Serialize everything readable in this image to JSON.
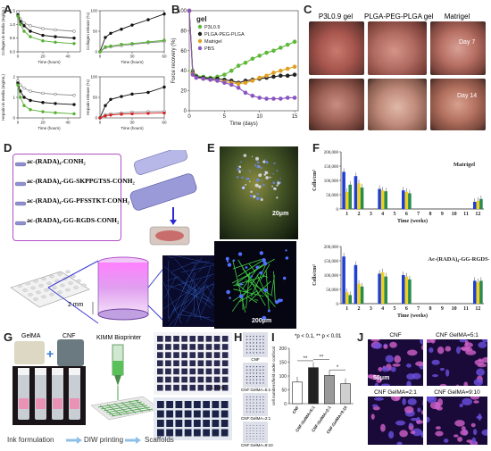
{
  "panels": {
    "A": {
      "label": "A",
      "sub1_ylabel": "Collagen in media (mg/mL)",
      "sub1_xlabel": "Time (hours)",
      "sub2_ylabel": "Collagen release (%)",
      "sub2_xlabel": "Time (hours)",
      "sub3_ylabel": "Heparin in media (mg/mL)",
      "sub3_xlabel": "Time (hours)",
      "sub4_ylabel": "Heparin release (%)",
      "sub4_xlabel": "Time (hours)"
    },
    "B": {
      "label": "B",
      "gel_label": "gel",
      "ylabel": "Force recovery (%)",
      "xlabel": "Time (days)"
    },
    "C": {
      "label": "C",
      "col1": "P3L0.9 gel",
      "col2": "PLGA-PEG-PLGA gel",
      "col3": "Matrigel",
      "row1": "Day 7",
      "row2": "Day 14"
    },
    "D": {
      "label": "D",
      "seq1": "ac-(RADA)₄-CONH₂",
      "seq2": "ac-(RADA)₄-GG-SKPPGTSS-CONH₂",
      "seq3": "ac-(RADA)₄-GG-PFSSTKT-CONH₂",
      "seq4": "ac-(RADA)₄-GG-RGDS-CONH₂",
      "scale": "2 mm"
    },
    "E": {
      "label": "E",
      "scale1": "20μm",
      "scale2": "200μm"
    },
    "F": {
      "label": "F",
      "title1": "Matrigel",
      "title2": "Ac-(RADA)₄-GG-RGDS-NH₂",
      "ylabel": "Cells/cm²",
      "xlabel": "Time (weeks)"
    },
    "G": {
      "label": "G",
      "gelma": "GelMA",
      "cnf": "CNF",
      "bioprinter": "KIMM Bioprinter",
      "scale": "1 mm",
      "step1": "Ink formulation",
      "step2": "DIW printing",
      "step3": "Scaffolds"
    },
    "H": {
      "label": "H",
      "cap1": "CNF",
      "cap2": "CNF:GelMA=5:1",
      "cap3": "CNF:GelMA=2:1",
      "cap4": "CNF:GelMA=9:10"
    },
    "I": {
      "label": "I",
      "note": "*p < 0.1, ** p < 0.01",
      "ylabel": "cell numbers/field under confocal",
      "sig1": "**",
      "sig2": "**",
      "sig3": "*"
    },
    "J": {
      "label": "J",
      "cap1": "CNF",
      "cap2": "CNF GelMA=5:1",
      "cap3": "CNF GelMA=2:1",
      "cap4": "CNF GelMA=9:10",
      "scale": "50μm"
    }
  },
  "chart_data": [
    {
      "id": "A1",
      "type": "line",
      "title": "",
      "xlabel": "Time (hours)",
      "ylabel": "Collagen in media (mg/mL)",
      "xlim": [
        0,
        50
      ],
      "ylim": [
        0,
        1.5
      ],
      "xticks": [
        "0",
        "20",
        "40"
      ],
      "yticks": [
        "0.0",
        "0.5",
        "1.0",
        "1.5"
      ],
      "x": [
        0,
        2,
        5,
        10,
        20,
        30,
        45
      ],
      "series": [
        {
          "values": [
            1.45,
            1.2,
            1.05,
            0.95,
            0.85,
            0.8,
            0.75
          ],
          "color": "#888888"
        },
        {
          "values": [
            1.35,
            1.1,
            0.95,
            0.75,
            0.6,
            0.55,
            0.5
          ],
          "color": "#111111"
        },
        {
          "values": [
            1.3,
            1.0,
            0.75,
            0.55,
            0.4,
            0.35,
            0.3
          ],
          "color": "#55b030"
        }
      ]
    },
    {
      "id": "A2",
      "type": "line",
      "title": "",
      "xlabel": "Time (hours)",
      "ylabel": "Collagen release (%)",
      "xlim": [
        0,
        60
      ],
      "ylim": [
        0,
        100
      ],
      "xticks": [
        "0",
        "30",
        "60"
      ],
      "yticks": [
        "0",
        "50",
        "100"
      ],
      "x": [
        0,
        5,
        10,
        20,
        30,
        45,
        60
      ],
      "series": [
        {
          "values": [
            0,
            35,
            45,
            55,
            65,
            78,
            92
          ],
          "color": "#111111"
        },
        {
          "values": [
            0,
            10,
            12,
            15,
            18,
            22,
            25
          ],
          "color": "#888888"
        },
        {
          "values": [
            0,
            12,
            14,
            18,
            20,
            24,
            28
          ],
          "color": "#55b030"
        }
      ]
    },
    {
      "id": "A3",
      "type": "line",
      "title": "",
      "xlabel": "Time (hours)",
      "ylabel": "Heparin in media (mg/mL)",
      "xlim": [
        0,
        50
      ],
      "ylim": [
        0,
        2.0
      ],
      "xticks": [
        "0",
        "20",
        "40"
      ],
      "yticks": [
        "0",
        "1",
        "2"
      ],
      "x": [
        0,
        2,
        5,
        10,
        20,
        30,
        45
      ],
      "series": [
        {
          "values": [
            1.8,
            1.6,
            1.45,
            1.3,
            1.2,
            1.15,
            1.1
          ],
          "color": "#888888"
        },
        {
          "values": [
            1.7,
            1.3,
            1.0,
            0.85,
            0.75,
            0.7,
            0.65
          ],
          "color": "#111111"
        },
        {
          "values": [
            1.6,
            1.0,
            0.6,
            0.4,
            0.3,
            0.25,
            0.2
          ],
          "color": "#55b030"
        }
      ]
    },
    {
      "id": "A4",
      "type": "line",
      "title": "",
      "xlabel": "Time (hours)",
      "ylabel": "Heparin release (%)",
      "xlim": [
        0,
        60
      ],
      "ylim": [
        0,
        100
      ],
      "xticks": [
        "0",
        "30",
        "60"
      ],
      "yticks": [
        "0",
        "50",
        "100"
      ],
      "x": [
        0,
        5,
        10,
        20,
        30,
        45,
        60
      ],
      "series": [
        {
          "values": [
            0,
            30,
            45,
            52,
            58,
            62,
            75
          ],
          "color": "#111111"
        },
        {
          "values": [
            0,
            8,
            10,
            12,
            14,
            15,
            16
          ],
          "color": "#888888"
        },
        {
          "values": [
            0,
            5,
            7,
            9,
            10,
            11,
            12
          ],
          "color": "#d22020"
        }
      ]
    },
    {
      "id": "B",
      "type": "line",
      "title": "",
      "xlabel": "Time (days)",
      "ylabel": "Force recovery (%)",
      "xlim": [
        0,
        15.5
      ],
      "ylim": [
        0,
        100
      ],
      "xticks": [
        "0",
        "5",
        "10",
        "15"
      ],
      "yticks": [
        "0",
        "20",
        "40",
        "60",
        "80",
        "100"
      ],
      "x": [
        0,
        0.5,
        1,
        2,
        3,
        4,
        5,
        6,
        7,
        8,
        9,
        10,
        11,
        12,
        13,
        14,
        15
      ],
      "legend": "top-left",
      "series": [
        {
          "name": "P3L0.9",
          "color": "#5fb83a",
          "values": [
            100,
            40,
            35,
            34,
            33,
            34,
            36,
            40,
            45,
            48,
            52,
            55,
            58,
            60,
            63,
            66,
            69
          ]
        },
        {
          "name": "PLGA-PEG-PLGA",
          "color": "#222222",
          "values": [
            100,
            38,
            34,
            33,
            32,
            32,
            31,
            30,
            28,
            30,
            31,
            32,
            33,
            34,
            35,
            35,
            36
          ]
        },
        {
          "name": "Matrigel",
          "color": "#e0a020",
          "values": [
            100,
            37,
            33,
            32,
            31,
            30,
            29,
            28,
            27,
            28,
            30,
            33,
            35,
            38,
            40,
            42,
            44
          ]
        },
        {
          "name": "PBS",
          "color": "#8a55c0",
          "values": [
            100,
            36,
            33,
            32,
            31,
            30,
            28,
            26,
            23,
            18,
            15,
            13,
            12,
            12,
            12,
            13,
            13
          ]
        }
      ]
    },
    {
      "id": "F1",
      "type": "bar",
      "title": "Matrigel",
      "xlabel": "Time (weeks)",
      "ylabel": "Cells/cm²",
      "categories": [
        "1",
        "2",
        "3",
        "4",
        "5",
        "6",
        "7",
        "8",
        "9",
        "10",
        "11",
        "12"
      ],
      "ylim": [
        0,
        200000
      ],
      "yticks": [
        "0",
        "50,000",
        "100,000",
        "150,000",
        "200,000"
      ],
      "series": [
        {
          "color": "#1f3fd0",
          "values": [
            130000,
            115000,
            0,
            70000,
            0,
            65000,
            0,
            0,
            0,
            0,
            0,
            25000
          ]
        },
        {
          "color": "#f0d020",
          "values": [
            60000,
            90000,
            0,
            65000,
            0,
            60000,
            0,
            0,
            0,
            0,
            0,
            28000
          ]
        },
        {
          "color": "#2a8a50",
          "values": [
            85000,
            75000,
            0,
            62000,
            0,
            55000,
            0,
            0,
            0,
            0,
            0,
            35000
          ]
        }
      ]
    },
    {
      "id": "F2",
      "type": "bar",
      "title": "Ac-(RADA)₄-GG-RGDS-NH₂",
      "xlabel": "Time (weeks)",
      "ylabel": "Cells/cm²",
      "categories": [
        "1",
        "2",
        "3",
        "4",
        "5",
        "6",
        "7",
        "8",
        "9",
        "10",
        "11",
        "12"
      ],
      "ylim": [
        0,
        200000
      ],
      "yticks": [
        "0",
        "50,000",
        "100,000",
        "150,000",
        "200,000"
      ],
      "series": [
        {
          "color": "#1f3fd0",
          "values": [
            165000,
            135000,
            0,
            105000,
            0,
            100000,
            0,
            0,
            0,
            0,
            0,
            80000
          ]
        },
        {
          "color": "#f0d020",
          "values": [
            40000,
            70000,
            0,
            110000,
            0,
            95000,
            0,
            0,
            0,
            0,
            0,
            75000
          ]
        },
        {
          "color": "#2a8a50",
          "values": [
            30000,
            60000,
            0,
            95000,
            0,
            85000,
            0,
            0,
            0,
            0,
            0,
            80000
          ]
        }
      ]
    },
    {
      "id": "I",
      "type": "bar",
      "title": "",
      "ylabel": "cell numbers/field under confocal",
      "categories": [
        "CNF",
        "CNF:GelMA=5:1",
        "CNF:GelMA=2:1",
        "CNF:GelMA=9:10"
      ],
      "values": [
        78,
        130,
        102,
        72
      ],
      "colors": [
        "#ffffff",
        "#222222",
        "#9a9a9a",
        "#cfcfcf"
      ],
      "ylim": [
        0,
        200
      ],
      "yticks": [
        "0",
        "50",
        "100",
        "150",
        "200"
      ]
    }
  ]
}
